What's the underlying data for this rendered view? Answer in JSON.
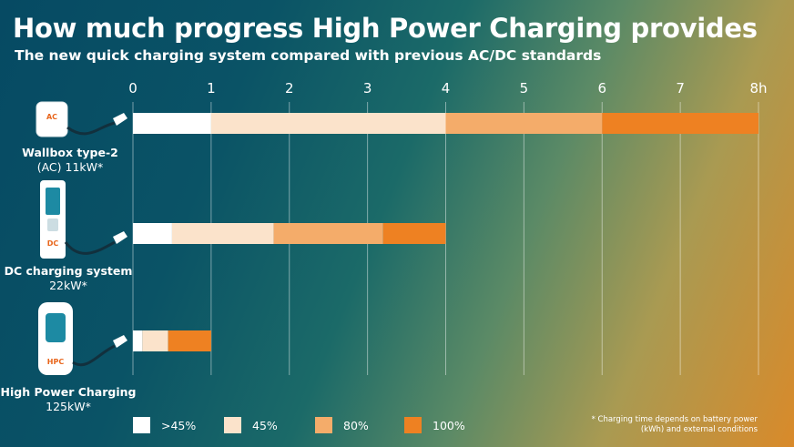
{
  "title": "How much progress High Power Charging provides",
  "subtitle": "The new quick charging system compared with previous AC/DC standards",
  "chart_data": {
    "type": "bar",
    "orientation": "horizontal",
    "stacked": true,
    "title": "How much progress High Power Charging provides",
    "subtitle": "The new quick charging system compared with previous AC/DC standards",
    "xlim": [
      0,
      8
    ],
    "x_ticks": [
      "0",
      "1",
      "2",
      "3",
      "4",
      "5",
      "6",
      "7",
      "8h"
    ],
    "grid": true,
    "legend_position": "bottom",
    "categories": [
      {
        "name": "Wallbox type-2",
        "power": "(AC) 11kW*",
        "badge": "AC"
      },
      {
        "name": "DC charging system",
        "power": "22kW*",
        "badge": "DC"
      },
      {
        "name": "High Power Charging",
        "power": "125kW*",
        "badge": "HPC"
      }
    ],
    "series": [
      {
        "name": ">45%",
        "color": "#ffffff",
        "values": [
          1.0,
          0.5,
          0.12
        ]
      },
      {
        "name": "45%",
        "color": "#fbe3cb",
        "values": [
          3.0,
          1.3,
          0.33
        ]
      },
      {
        "name": "80%",
        "color": "#f4ac6a",
        "values": [
          2.0,
          1.4,
          0.0
        ]
      },
      {
        "name": "100%",
        "color": "#ee8122",
        "values": [
          2.0,
          0.8,
          0.55
        ]
      }
    ],
    "footnote": "* Charging time depends on battery power (kWh) and external conditions"
  }
}
